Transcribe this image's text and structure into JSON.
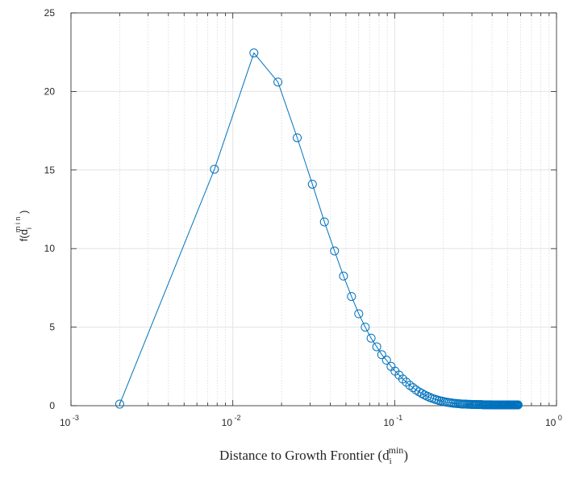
{
  "chart_data": {
    "type": "line",
    "title": "",
    "xlabel": {
      "main": "Distance to Growth Frontier (d",
      "subscript": "i",
      "superscript": "min",
      "close": ")"
    },
    "ylabel": {
      "main": "f(d",
      "subscript": "i",
      "superscript": "m i n",
      "close": " )"
    },
    "xscale": "log",
    "xlim": [
      0.001,
      1
    ],
    "ylim": [
      0,
      25
    ],
    "grid": true,
    "x_ticks": [
      {
        "base": "10",
        "exp": "-3"
      },
      {
        "base": "10",
        "exp": "-2"
      },
      {
        "base": "10",
        "exp": "-1"
      },
      {
        "base": "10",
        "exp": "0"
      }
    ],
    "y_ticks": [
      "0",
      "5",
      "10",
      "15",
      "20",
      "25"
    ],
    "color": "#0072BD",
    "marker": "circle",
    "series": [
      {
        "x": [
          0.002,
          0.0077,
          0.0135,
          0.019,
          0.025,
          0.031,
          0.0368,
          0.0425,
          0.0483,
          0.0541,
          0.06,
          0.0658,
          0.0715,
          0.0775,
          0.0832,
          0.089,
          0.095,
          0.1005,
          0.1065,
          0.1122,
          0.118,
          0.124,
          0.1298,
          0.1355,
          0.1415,
          0.1472,
          0.153,
          0.159,
          0.1648,
          0.1705,
          0.1765,
          0.1822,
          0.188,
          0.194,
          0.1998,
          0.2055,
          0.2115,
          0.2172,
          0.223,
          0.229,
          0.2347,
          0.2405,
          0.2465,
          0.2522,
          0.258,
          0.264,
          0.2697,
          0.2755,
          0.2815,
          0.2872,
          0.293,
          0.299,
          0.3047,
          0.3105,
          0.3165,
          0.3222,
          0.328,
          0.334,
          0.3397,
          0.3455,
          0.3515,
          0.3572,
          0.363,
          0.369,
          0.3747,
          0.3805,
          0.3865,
          0.3922,
          0.398,
          0.404,
          0.4097,
          0.4155,
          0.4215,
          0.4272,
          0.433,
          0.439,
          0.4447,
          0.4505,
          0.4565,
          0.4622,
          0.468,
          0.474,
          0.4797,
          0.4855,
          0.4915,
          0.4972,
          0.503,
          0.509,
          0.5147,
          0.5205,
          0.5265,
          0.5322,
          0.538,
          0.544,
          0.5497,
          0.5555,
          0.5615,
          0.5672,
          0.573,
          0.579
        ],
        "y": [
          0.1,
          15.05,
          22.45,
          20.6,
          17.05,
          14.1,
          11.7,
          9.85,
          8.25,
          6.95,
          5.85,
          5.0,
          4.3,
          3.75,
          3.25,
          2.9,
          2.5,
          2.2,
          1.95,
          1.7,
          1.5,
          1.3,
          1.15,
          1.0,
          0.88,
          0.78,
          0.68,
          0.6,
          0.53,
          0.47,
          0.42,
          0.37,
          0.33,
          0.3,
          0.27,
          0.24,
          0.22,
          0.2,
          0.18,
          0.16,
          0.15,
          0.14,
          0.13,
          0.12,
          0.11,
          0.1,
          0.1,
          0.1,
          0.09,
          0.09,
          0.09,
          0.08,
          0.08,
          0.08,
          0.08,
          0.07,
          0.07,
          0.07,
          0.07,
          0.07,
          0.06,
          0.06,
          0.06,
          0.06,
          0.06,
          0.06,
          0.06,
          0.06,
          0.05,
          0.05,
          0.05,
          0.05,
          0.05,
          0.05,
          0.05,
          0.05,
          0.05,
          0.05,
          0.05,
          0.05,
          0.05,
          0.05,
          0.05,
          0.05,
          0.05,
          0.05,
          0.05,
          0.05,
          0.05,
          0.05,
          0.05,
          0.05,
          0.05,
          0.05,
          0.05,
          0.05,
          0.05,
          0.05,
          0.05,
          0.05
        ]
      }
    ]
  }
}
